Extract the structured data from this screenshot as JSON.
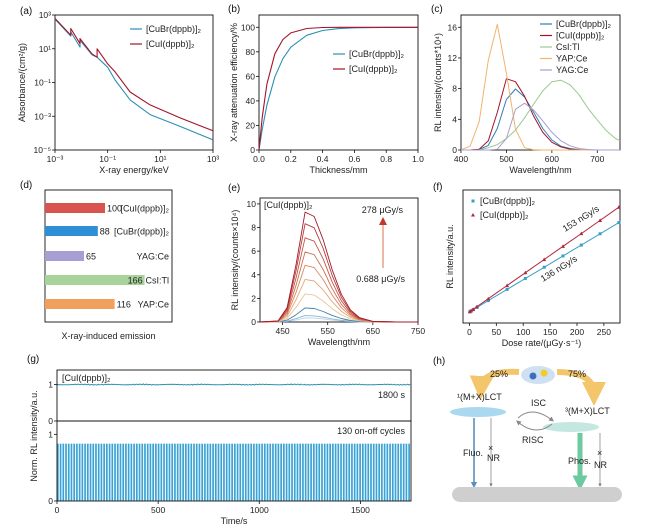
{
  "chart_data": [
    {
      "panel_label": "(a)",
      "type": "line",
      "xlabel": "X-ray energy/keV",
      "ylabel": "Absorbance/(cm²/g)",
      "xscale": "log",
      "yscale": "log",
      "xlim": [
        0.001,
        1000
      ],
      "ylim": [
        1e-05,
        1000
      ],
      "xticks": [
        {
          "value": 0.001,
          "label": "10⁻³"
        },
        {
          "value": 0.1,
          "label": "10⁻¹"
        },
        {
          "value": 10,
          "label": "10¹"
        },
        {
          "value": 1000,
          "label": "10³"
        }
      ],
      "yticks": [
        {
          "value": 1000,
          "label": "10³"
        },
        {
          "value": 10,
          "label": "10¹"
        },
        {
          "value": 0.1,
          "label": "10⁻¹"
        },
        {
          "value": 0.001,
          "label": "10⁻³"
        },
        {
          "value": 1e-05,
          "label": "10⁻⁵"
        }
      ],
      "legend": "top-right",
      "series": [
        {
          "name": "[CuBr(dppb)]₂",
          "color": "#2e8fb5",
          "x": [
            0.001,
            0.00398,
            0.00398,
            0.00891,
            0.00891,
            0.0251,
            0.0398,
            0.1,
            0.191,
            0.708,
            4.07,
            56.2,
            1000
          ],
          "y": [
            575,
            56.2,
            100,
            12.6,
            31.6,
            4.47,
            3.16,
            0.794,
            0.141,
            0.0093,
            0.00126,
            0.000251,
            3.98e-05
          ]
        },
        {
          "name": "[CuI(dppb)]₂",
          "color": "#a3142a",
          "x": [
            0.001,
            0.00398,
            0.00398,
            0.00891,
            0.00891,
            0.0251,
            0.0398,
            0.0398,
            0.1,
            0.191,
            0.708,
            4.07,
            56.2,
            1000
          ],
          "y": [
            631,
            63.1,
            158,
            20,
            39.8,
            5.01,
            3.16,
            10,
            1.26,
            0.427,
            0.0275,
            0.00468,
            0.000794,
            0.000138
          ]
        }
      ]
    },
    {
      "panel_label": "(b)",
      "type": "line",
      "xlabel": "Thickness/mm",
      "ylabel": "X-ray attenuation efficiency/%",
      "xlim": [
        0,
        1.0
      ],
      "ylim": [
        0,
        110
      ],
      "xticks": [
        {
          "value": 0,
          "label": "0.0"
        },
        {
          "value": 0.2,
          "label": "0.2"
        },
        {
          "value": 0.4,
          "label": "0.4"
        },
        {
          "value": 0.6,
          "label": "0.6"
        },
        {
          "value": 0.8,
          "label": "0.8"
        },
        {
          "value": 1.0,
          "label": "1.0"
        }
      ],
      "yticks": [
        {
          "value": 0,
          "label": "0"
        },
        {
          "value": 20,
          "label": "20"
        },
        {
          "value": 40,
          "label": "40"
        },
        {
          "value": 60,
          "label": "60"
        },
        {
          "value": 80,
          "label": "80"
        },
        {
          "value": 100,
          "label": "100"
        }
      ],
      "legend": "center-right",
      "series": [
        {
          "name": "[CuBr(dppb)]₂",
          "color": "#2e8fb5",
          "x": [
            0,
            0.02,
            0.05,
            0.1,
            0.15,
            0.2,
            0.3,
            0.4,
            0.5,
            0.6,
            0.8,
            1.0
          ],
          "y": [
            0,
            16.6,
            36.5,
            59.7,
            74.4,
            83.8,
            93.5,
            97.4,
            98.9,
            99.6,
            99.9,
            100
          ]
        },
        {
          "name": "[CuI(dppb)]₂",
          "color": "#a3142a",
          "x": [
            0,
            0.02,
            0.05,
            0.1,
            0.15,
            0.2,
            0.3,
            0.4,
            0.5,
            0.6,
            0.8,
            1.0
          ],
          "y": [
            0,
            26.5,
            53.7,
            78.5,
            90.0,
            95.4,
            99.0,
            99.8,
            100,
            100,
            100,
            100
          ]
        }
      ]
    },
    {
      "panel_label": "(c)",
      "type": "line",
      "xlabel": "Wavelength/nm",
      "ylabel": "RL intensity/(counts*10⁴)",
      "xlim": [
        400,
        750
      ],
      "ylim": [
        0,
        17.6
      ],
      "xticks": [
        {
          "value": 400,
          "label": "400"
        },
        {
          "value": 500,
          "label": "500"
        },
        {
          "value": 600,
          "label": "600"
        },
        {
          "value": 700,
          "label": "700"
        }
      ],
      "yticks": [
        {
          "value": 0,
          "label": "0"
        },
        {
          "value": 4,
          "label": "4"
        },
        {
          "value": 8,
          "label": "8"
        },
        {
          "value": 12,
          "label": "12"
        },
        {
          "value": 16,
          "label": "16"
        }
      ],
      "legend": "top-right",
      "x": [
        400,
        420,
        440,
        460,
        480,
        500,
        520,
        540,
        560,
        580,
        600,
        620,
        640,
        660,
        680,
        700,
        720,
        740,
        750
      ],
      "series": [
        {
          "name": "[CuBr(dppb)]₂",
          "color": "#2e7fb5",
          "y": [
            0,
            0,
            0.06,
            0.6,
            2.8,
            6.6,
            7.95,
            6.9,
            4.9,
            2.8,
            1.3,
            0.5,
            0.2,
            0.05,
            0,
            0,
            0,
            0,
            0
          ]
        },
        {
          "name": "[CuI(dppb)]₂",
          "color": "#a3142a",
          "y": [
            0,
            0,
            0.1,
            1.2,
            4.9,
            9.3,
            8.9,
            7.0,
            4.4,
            2.3,
            1.0,
            0.4,
            0.1,
            0.03,
            0,
            0,
            0,
            0,
            0
          ]
        },
        {
          "name": "CsI:Tl",
          "color": "#9cc792",
          "y": [
            0,
            0,
            0,
            0.3,
            0.7,
            1.5,
            2.6,
            4.2,
            6.0,
            7.7,
            8.9,
            9.1,
            8.5,
            7.2,
            5.4,
            3.9,
            2.5,
            1.5,
            1.2
          ]
        },
        {
          "name": "YAP:Ce",
          "color": "#f2b36b",
          "y": [
            0.03,
            0.5,
            3.7,
            11.7,
            16.4,
            10,
            2.7,
            0.3,
            0.02,
            0,
            0,
            0,
            0,
            0,
            0,
            0,
            0,
            0,
            0
          ]
        },
        {
          "name": "YAG:Ce",
          "color": "#a7a0cc",
          "y": [
            0,
            0,
            0,
            0,
            0.1,
            1.5,
            5.3,
            6.1,
            5.2,
            3.8,
            2.3,
            1.2,
            0.55,
            0.2,
            0.07,
            0,
            0,
            0,
            0
          ]
        }
      ]
    },
    {
      "panel_label": "(d)",
      "type": "bar",
      "orientation": "horizontal",
      "xlabel": "X-ray-induced emission",
      "categories": [
        "[CuI(dppb)]₂",
        "[CuBr(dppb)]₂",
        "YAG:Ce",
        "CsI:Tl",
        "YAP:Ce"
      ],
      "values": [
        100,
        88,
        65,
        166,
        116
      ],
      "value_labels": [
        "100",
        "88",
        "65",
        "166",
        "116"
      ],
      "colors": [
        "#d9544f",
        "#2f8fd6",
        "#a79fd3",
        "#a8d39a",
        "#f0a05a"
      ]
    },
    {
      "panel_label": "(e)",
      "type": "line",
      "xlabel": "Wavelength/nm",
      "ylabel": "RL intensity/(counts×10⁴)",
      "title": "[CuI(dppb)]₂",
      "annotation_high": "278 μGy/s",
      "annotation_low": "0.688 μGy/s",
      "xlim": [
        400,
        750
      ],
      "ylim": [
        0,
        10.5
      ],
      "xticks": [
        {
          "value": 450,
          "label": "450"
        },
        {
          "value": 550,
          "label": "550"
        },
        {
          "value": 650,
          "label": "650"
        },
        {
          "value": 750,
          "label": "750"
        }
      ],
      "yticks": [
        {
          "value": 0,
          "label": "0"
        },
        {
          "value": 2,
          "label": "2"
        },
        {
          "value": 4,
          "label": "4"
        },
        {
          "value": 6,
          "label": "6"
        },
        {
          "value": 8,
          "label": "8"
        },
        {
          "value": 10,
          "label": "10"
        }
      ],
      "x": [
        400,
        440,
        460,
        480,
        500,
        520,
        540,
        560,
        580,
        600,
        620,
        650,
        700,
        750
      ],
      "series": [
        {
          "color": "#a31a2a",
          "y": [
            0,
            0.09,
            1.22,
            4.89,
            9.31,
            8.93,
            6.96,
            4.42,
            2.35,
            1.03,
            0.38,
            0.05,
            0,
            0
          ]
        },
        {
          "color": "#b83a3a",
          "y": [
            0,
            0.08,
            1.09,
            4.37,
            8.32,
            7.98,
            6.22,
            3.95,
            2.1,
            0.92,
            0.34,
            0.04,
            0,
            0
          ]
        },
        {
          "color": "#c45545",
          "y": [
            0,
            0.07,
            0.94,
            3.74,
            7.13,
            6.84,
            5.33,
            3.38,
            1.8,
            0.79,
            0.29,
            0.04,
            0,
            0
          ]
        },
        {
          "color": "#cf6e50",
          "y": [
            0,
            0.06,
            0.78,
            3.12,
            5.94,
            5.7,
            4.44,
            2.82,
            1.5,
            0.66,
            0.24,
            0.03,
            0,
            0
          ]
        },
        {
          "color": "#d98a60",
          "y": [
            0,
            0.05,
            0.63,
            2.52,
            4.8,
            4.61,
            3.59,
            2.28,
            1.21,
            0.53,
            0.19,
            0.02,
            0,
            0
          ]
        },
        {
          "color": "#e3a878",
          "y": [
            0,
            0.04,
            0.47,
            1.9,
            3.61,
            3.47,
            2.7,
            1.72,
            0.91,
            0.4,
            0.15,
            0.02,
            0,
            0
          ]
        },
        {
          "color": "#ecc598",
          "y": [
            0,
            0.02,
            0.31,
            1.25,
            2.38,
            2.28,
            1.78,
            1.13,
            0.6,
            0.26,
            0.1,
            0.01,
            0,
            0
          ]
        },
        {
          "color": "#3f7fa8",
          "y": [
            0,
            0.01,
            0.16,
            0.62,
            1.19,
            1.14,
            0.89,
            0.56,
            0.3,
            0.13,
            0.05,
            0.01,
            0,
            0
          ]
        },
        {
          "color": "#8ab5d6",
          "y": [
            0,
            0.01,
            0.07,
            0.29,
            0.54,
            0.52,
            0.41,
            0.26,
            0.14,
            0.06,
            0.02,
            0,
            0,
            0
          ]
        },
        {
          "color": "#b9d4ea",
          "y": [
            0,
            0,
            0.05,
            0.18,
            0.35,
            0.33,
            0.26,
            0.16,
            0.09,
            0.04,
            0.01,
            0,
            0,
            0
          ]
        }
      ]
    },
    {
      "panel_label": "(f)",
      "type": "scatter",
      "xlabel": "Dose rate/(μGy·s⁻¹)",
      "ylabel": "RL intensity/a.u.",
      "xlim": [
        -12,
        280
      ],
      "ylim": [
        0,
        120
      ],
      "xticks": [
        {
          "value": 0,
          "label": "0"
        },
        {
          "value": 50,
          "label": "50"
        },
        {
          "value": 100,
          "label": "100"
        },
        {
          "value": 150,
          "label": "150"
        },
        {
          "value": 200,
          "label": "200"
        },
        {
          "value": 250,
          "label": "250"
        }
      ],
      "legend": "top-left",
      "fit_labels": [
        "153 nGy/s",
        "136 nGy/s"
      ],
      "x": [
        0.688,
        3,
        7,
        14,
        35,
        70,
        104,
        139,
        174,
        208,
        243,
        278
      ],
      "series": [
        {
          "name": "[CuBr(dppb)]₂",
          "color": "#3a9fc8",
          "marker": "square",
          "y": [
            10.2,
            10.9,
            12.0,
            14.1,
            20.2,
            30.3,
            40.2,
            50.3,
            60.5,
            70.3,
            80.5,
            90.6
          ]
        },
        {
          "name": "[CuI(dppb)]₂",
          "color": "#b0283a",
          "marker": "triangle",
          "y": [
            10.2,
            11.0,
            12.4,
            14.8,
            21.9,
            33.8,
            45.4,
            57.3,
            69.2,
            80.7,
            92.6,
            104.5
          ]
        }
      ]
    },
    {
      "panel_label": "(g)",
      "type": "line",
      "xlabel": "Time/s",
      "ylabel": "Norm. RL intensity/a.u.",
      "title": "[CuI(dppb)]₂",
      "xlim": [
        0,
        1750
      ],
      "xticks": [
        {
          "value": 0,
          "label": "0"
        },
        {
          "value": 500,
          "label": "500"
        },
        {
          "value": 1000,
          "label": "1000"
        },
        {
          "value": 1500,
          "label": "1500"
        }
      ],
      "top": {
        "annotation": "1800 s",
        "level": 1,
        "ylim": [
          0,
          1.4
        ],
        "yticks": [
          {
            "value": 0,
            "label": "0"
          },
          {
            "value": 1,
            "label": "1"
          }
        ],
        "color": "#2e8fb5"
      },
      "bottom": {
        "annotation": "130 on-off cycles",
        "cycles": 130,
        "on_level": 0.86,
        "ylim": [
          0,
          1.2
        ],
        "yticks": [
          {
            "value": 0,
            "label": "0"
          },
          {
            "value": 1,
            "label": "1"
          }
        ],
        "color": "#3aa2d4"
      }
    }
  ],
  "diagram_h": {
    "panel_label": "(h)",
    "left_percent": "25%",
    "right_percent": "75%",
    "singlet": "¹(M+X)LCT",
    "triplet": "³(M+X)LCT",
    "isc": "ISC",
    "risc": "RISC",
    "fluo": "Fluo.",
    "phos": "Phos.",
    "nr": "NR",
    "nr_mark": "×"
  }
}
